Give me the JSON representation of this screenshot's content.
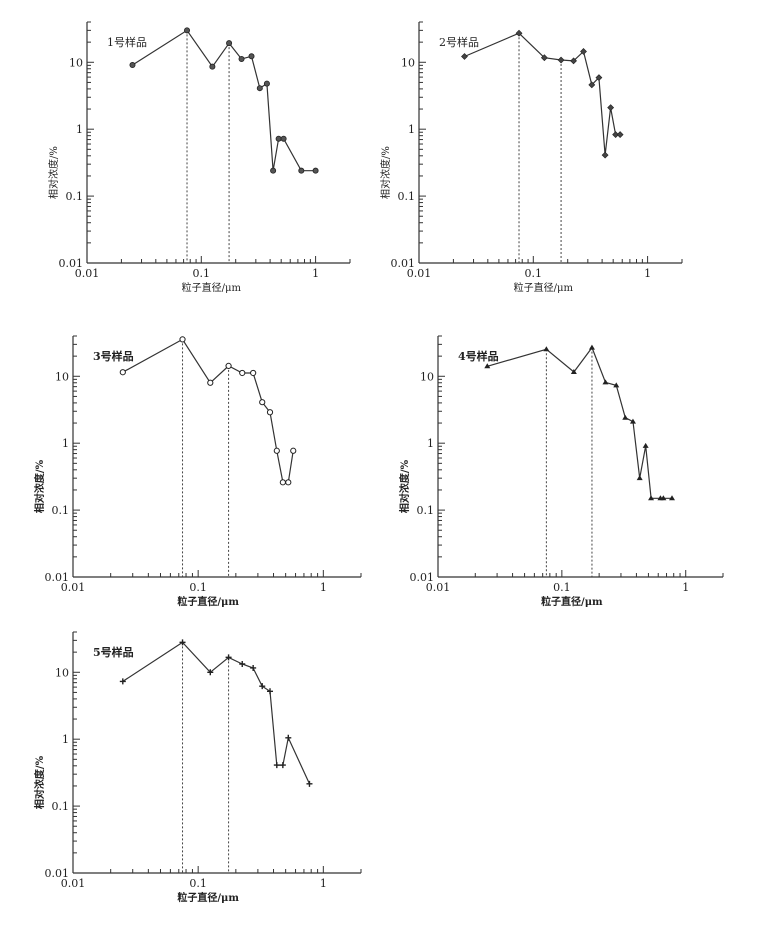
{
  "chart_data": [
    {
      "type": "line",
      "title": "1号样品",
      "title_bold": false,
      "marker": "filled-circle",
      "xlabel": "粒子直径/μm",
      "ylabel": "相对浓度/%",
      "xscale": "log",
      "yscale": "log",
      "xlim": [
        0.01,
        2
      ],
      "ylim": [
        0.01,
        40
      ],
      "xticks": [
        {
          "v": 0.01,
          "label": "0.01"
        },
        {
          "v": 0.1,
          "label": "0.1"
        },
        {
          "v": 1,
          "label": "1"
        }
      ],
      "yticks": [
        {
          "v": 0.01,
          "label": "0.01"
        },
        {
          "v": 0.1,
          "label": "0.1"
        },
        {
          "v": 1,
          "label": "1"
        },
        {
          "v": 10,
          "label": "10"
        }
      ],
      "dashed_lines_at": [
        0.075,
        0.175
      ],
      "x": [
        0.025,
        0.075,
        0.125,
        0.175,
        0.225,
        0.275,
        0.325,
        0.375,
        0.425,
        0.475,
        0.525,
        0.75,
        1.0
      ],
      "y": [
        9.1,
        30,
        8.6,
        19.3,
        11.2,
        12.3,
        4.1,
        4.8,
        0.24,
        0.72,
        0.72,
        0.24,
        0.24
      ]
    },
    {
      "type": "line",
      "title": "2号样品",
      "title_bold": false,
      "marker": "diamond",
      "xlabel": "粒子直径/μm",
      "ylabel": "相对浓度/%",
      "xscale": "log",
      "yscale": "log",
      "xlim": [
        0.01,
        2
      ],
      "ylim": [
        0.01,
        40
      ],
      "xticks": [
        {
          "v": 0.01,
          "label": "0.01"
        },
        {
          "v": 0.1,
          "label": "0.1"
        },
        {
          "v": 1,
          "label": "1"
        }
      ],
      "yticks": [
        {
          "v": 0.01,
          "label": "0.01"
        },
        {
          "v": 0.1,
          "label": "0.1"
        },
        {
          "v": 1,
          "label": "1"
        },
        {
          "v": 10,
          "label": "10"
        }
      ],
      "dashed_lines_at": [
        0.075,
        0.175
      ],
      "x": [
        0.025,
        0.075,
        0.125,
        0.175,
        0.225,
        0.275,
        0.325,
        0.375,
        0.425,
        0.475,
        0.525,
        0.575
      ],
      "y": [
        12.2,
        27.2,
        11.7,
        10.8,
        10.5,
        14.5,
        4.6,
        5.9,
        0.41,
        2.1,
        0.83,
        0.83
      ]
    },
    {
      "type": "line",
      "title": "3号样品",
      "title_bold": true,
      "marker": "open-circle",
      "xlabel": "粒子直径/μm",
      "ylabel": "相对浓度/%",
      "xscale": "log",
      "yscale": "log",
      "xlim": [
        0.01,
        2
      ],
      "ylim": [
        0.01,
        40
      ],
      "xticks": [
        {
          "v": 0.01,
          "label": "0.01"
        },
        {
          "v": 0.1,
          "label": "0.1"
        },
        {
          "v": 1,
          "label": "1"
        }
      ],
      "yticks": [
        {
          "v": 0.01,
          "label": "0.01"
        },
        {
          "v": 0.1,
          "label": "0.1"
        },
        {
          "v": 1,
          "label": "1"
        },
        {
          "v": 10,
          "label": "10"
        }
      ],
      "dashed_lines_at": [
        0.075,
        0.175
      ],
      "x": [
        0.025,
        0.075,
        0.125,
        0.175,
        0.225,
        0.275,
        0.325,
        0.375,
        0.425,
        0.475,
        0.525,
        0.575
      ],
      "y": [
        11.5,
        35.6,
        8.0,
        14.3,
        11.2,
        11.2,
        4.1,
        2.9,
        0.77,
        0.26,
        0.26,
        0.77
      ]
    },
    {
      "type": "line",
      "title": "4号样品",
      "title_bold": true,
      "marker": "triangle",
      "xlabel": "粒子直径/μm",
      "ylabel": "相对浓度/%",
      "xscale": "log",
      "yscale": "log",
      "xlim": [
        0.01,
        2
      ],
      "ylim": [
        0.01,
        40
      ],
      "xticks": [
        {
          "v": 0.01,
          "label": "0.01"
        },
        {
          "v": 0.1,
          "label": "0.1"
        },
        {
          "v": 1,
          "label": "1"
        }
      ],
      "yticks": [
        {
          "v": 0.01,
          "label": "0.01"
        },
        {
          "v": 0.1,
          "label": "0.1"
        },
        {
          "v": 1,
          "label": "1"
        },
        {
          "v": 10,
          "label": "10"
        }
      ],
      "dashed_lines_at": [
        0.075,
        0.175
      ],
      "x": [
        0.025,
        0.075,
        0.125,
        0.175,
        0.225,
        0.275,
        0.325,
        0.375,
        0.425,
        0.475,
        0.525,
        0.625,
        0.66,
        0.775
      ],
      "y": [
        14.1,
        25.3,
        11.6,
        26.8,
        8.1,
        7.3,
        2.4,
        2.1,
        0.3,
        0.91,
        0.15,
        0.15,
        0.15,
        0.15
      ]
    },
    {
      "type": "line",
      "title": "5号样品",
      "title_bold": true,
      "marker": "plus",
      "xlabel": "粒子直径/μm",
      "ylabel": "相对浓度/%",
      "xscale": "log",
      "yscale": "log",
      "xlim": [
        0.01,
        2
      ],
      "ylim": [
        0.01,
        40
      ],
      "xticks": [
        {
          "v": 0.01,
          "label": "0.01"
        },
        {
          "v": 0.1,
          "label": "0.1"
        },
        {
          "v": 1,
          "label": "1"
        }
      ],
      "yticks": [
        {
          "v": 0.01,
          "label": "0.01"
        },
        {
          "v": 0.1,
          "label": "0.1"
        },
        {
          "v": 1,
          "label": "1"
        },
        {
          "v": 10,
          "label": "10"
        }
      ],
      "dashed_lines_at": [
        0.075,
        0.175
      ],
      "x": [
        0.025,
        0.075,
        0.125,
        0.175,
        0.225,
        0.275,
        0.325,
        0.375,
        0.425,
        0.475,
        0.525,
        0.775
      ],
      "y": [
        7.3,
        28,
        10,
        16.7,
        13.3,
        11.6,
        6.2,
        5.2,
        0.41,
        0.41,
        1.05,
        0.215
      ]
    }
  ]
}
